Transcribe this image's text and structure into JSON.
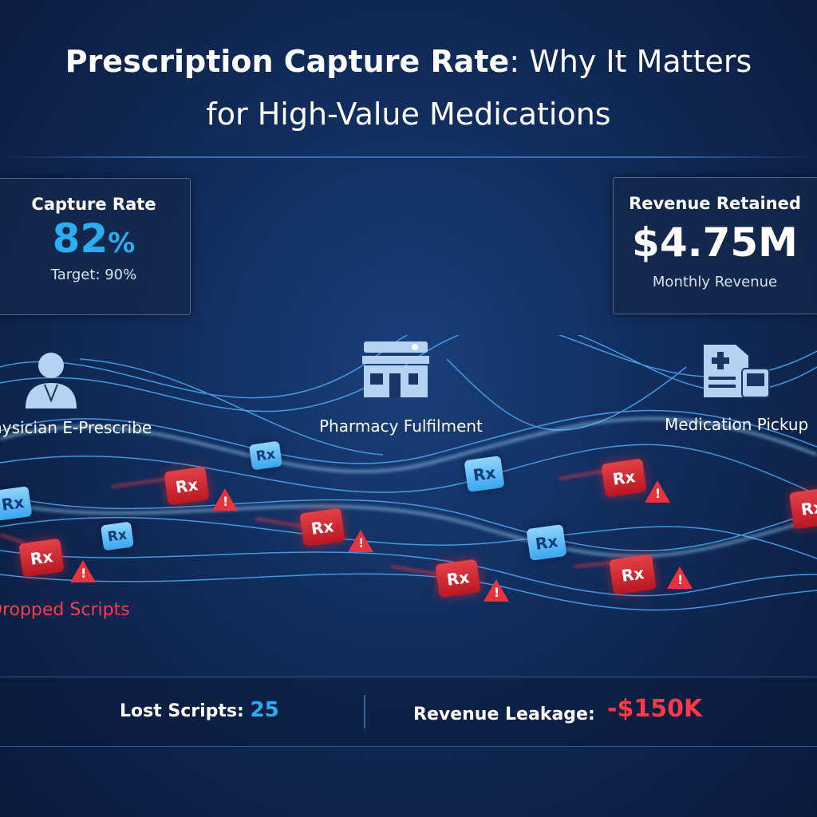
{
  "title": {
    "bold": "Prescription Capture Rate",
    "rest": ": Why It Matters",
    "line2": "for High-Value Medications"
  },
  "cards": {
    "capture": {
      "heading": "Capture Rate",
      "value": "82",
      "unit": "%",
      "sub": "Target: 90%",
      "value_color": "#2aaef0"
    },
    "revenue": {
      "heading": "Revenue Retained",
      "value": "$4.75M",
      "sub": "Monthly Revenue"
    }
  },
  "stages": [
    {
      "label": "Physician E-Prescribe",
      "icon": "physician-icon"
    },
    {
      "label": "Pharmacy Fulfilment",
      "icon": "pharmacy-store-icon"
    },
    {
      "label": "Medication Pickup",
      "icon": "medication-pickup-icon"
    }
  ],
  "dropped_label": "Dropped Scripts",
  "rx_label": "Rx",
  "warning_glyph": "!",
  "bottom": {
    "lost_label": "Lost Scripts:",
    "lost_value": "25",
    "leak_label": "Revenue Leakage:",
    "leak_value": "-$150K"
  },
  "colors": {
    "accent": "#2aaef0",
    "alert": "#e8323c"
  }
}
